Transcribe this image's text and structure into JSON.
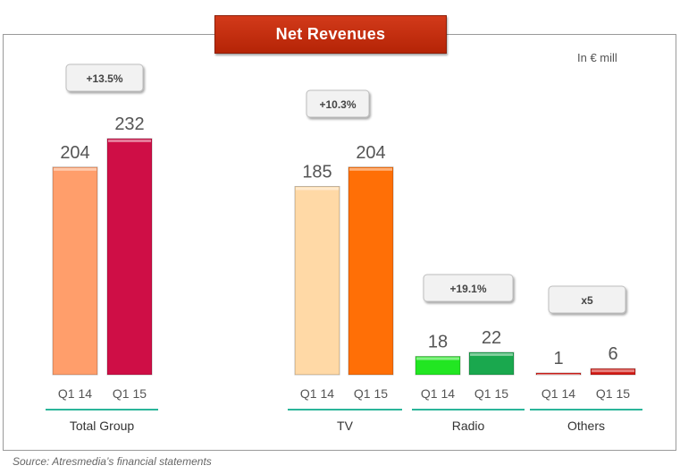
{
  "title": "Net Revenues",
  "unit_label": "In € mill",
  "source": "Source: Atresmedia’s financial statements",
  "chart_data": {
    "type": "bar",
    "ylim": [
      0,
      232
    ],
    "groups": [
      {
        "name": "Total Group",
        "growth": "+13.5%",
        "bars": [
          {
            "label": "Q1 14",
            "value": 204,
            "color": "#ff9e6b"
          },
          {
            "label": "Q1 15",
            "value": 232,
            "color": "#cf0e46"
          }
        ]
      },
      {
        "name": "TV",
        "growth": "+10.3%",
        "bars": [
          {
            "label": "Q1 14",
            "value": 185,
            "color": "#ffd9a6"
          },
          {
            "label": "Q1 15",
            "value": 204,
            "color": "#ff6f06"
          }
        ]
      },
      {
        "name": "Radio",
        "growth": "+19.1%",
        "bars": [
          {
            "label": "Q1 14",
            "value": 18,
            "color": "#22e622"
          },
          {
            "label": "Q1 15",
            "value": 22,
            "color": "#1aa84e"
          }
        ]
      },
      {
        "name": "Others",
        "growth": "x5",
        "bars": [
          {
            "label": "Q1 14",
            "value": 1,
            "color": "#e0221c"
          },
          {
            "label": "Q1 15",
            "value": 6,
            "color": "#d11a14"
          }
        ]
      }
    ],
    "colors": {
      "underline": "#2bb59a",
      "badge_fill": "#f2f2f2",
      "badge_stroke": "#bdbdbd"
    }
  }
}
